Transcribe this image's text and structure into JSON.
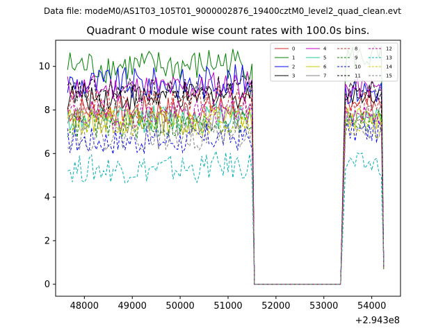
{
  "header": {
    "data_file": "Data file: modeM0/AS1T03_105T01_9000002876_19400cztM0_level2_quad_clean.evt"
  },
  "chart_data": {
    "type": "line",
    "title": "Quadrant 0 module wise count rates with 100.0s bins.",
    "xlabel": "",
    "ylabel": "",
    "x_offset_label": "+2.943e8",
    "xlim": [
      47400,
      54600
    ],
    "ylim": [
      -0.55,
      11.2
    ],
    "xticks": [
      48000,
      49000,
      50000,
      51000,
      52000,
      53000,
      54000
    ],
    "xtick_labels": [
      "48000",
      "49000",
      "50000",
      "51000",
      "52000",
      "53000",
      "54000"
    ],
    "yticks": [
      0,
      2,
      4,
      6,
      8,
      10
    ],
    "ytick_labels": [
      "0",
      "2",
      "4",
      "6",
      "8",
      "10"
    ],
    "legend_location": "upper right",
    "series": [
      {
        "name": "0",
        "color": "#d62728",
        "dash": "solid",
        "base": 8.0,
        "amp": 0.3,
        "post": 8.5
      },
      {
        "name": "1",
        "color": "#008000",
        "dash": "solid",
        "base": 10.0,
        "amp": 0.35,
        "post": 10.4
      },
      {
        "name": "2",
        "color": "#0000ff",
        "dash": "solid",
        "base": 9.2,
        "amp": 0.35,
        "post": 8.9
      },
      {
        "name": "3",
        "color": "#000000",
        "dash": "solid",
        "base": 8.6,
        "amp": 0.3,
        "post": 8.8
      },
      {
        "name": "4",
        "color": "#c000c0",
        "dash": "solid",
        "base": 9.0,
        "amp": 0.3,
        "post": 9.0
      },
      {
        "name": "5",
        "color": "#1fcf8f",
        "dash": "solid",
        "base": 7.6,
        "amp": 0.3,
        "post": 7.7
      },
      {
        "name": "6",
        "color": "#c8c800",
        "dash": "solid",
        "base": 7.5,
        "amp": 0.3,
        "post": 7.6
      },
      {
        "name": "7",
        "color": "#808080",
        "dash": "solid",
        "base": 7.5,
        "amp": 0.3,
        "post": 7.7
      },
      {
        "name": "8",
        "color": "#d62728",
        "dash": "dashed",
        "base": 8.3,
        "amp": 0.3,
        "post": 8.0
      },
      {
        "name": "9",
        "color": "#008000",
        "dash": "dashed",
        "base": 7.3,
        "amp": 0.3,
        "post": 7.5
      },
      {
        "name": "10",
        "color": "#0000ff",
        "dash": "dashed",
        "base": 6.6,
        "amp": 0.3,
        "post": 7.0
      },
      {
        "name": "11",
        "color": "#000000",
        "dash": "dashed",
        "base": 8.8,
        "amp": 0.3,
        "post": 9.0
      },
      {
        "name": "12",
        "color": "#c000c0",
        "dash": "dashed",
        "base": 7.8,
        "amp": 0.3,
        "post": 7.8
      },
      {
        "name": "13",
        "color": "#00b0b0",
        "dash": "dashed",
        "base": 5.3,
        "amp": 0.3,
        "post": 5.5
      },
      {
        "name": "14",
        "color": "#c8c800",
        "dash": "dashed",
        "base": 7.4,
        "amp": 0.3,
        "post": 7.2
      },
      {
        "name": "15",
        "color": "#808080",
        "dash": "dashed",
        "base": 6.8,
        "amp": 0.3,
        "post": 7.0
      }
    ],
    "time_bins": {
      "start": 47650,
      "bin_width": 100,
      "active_until": 51500,
      "gap_start": 51550,
      "gap_end": 53350,
      "resume": 53450,
      "end": 54250,
      "gap_value": 0,
      "end_value": 0.7
    }
  }
}
